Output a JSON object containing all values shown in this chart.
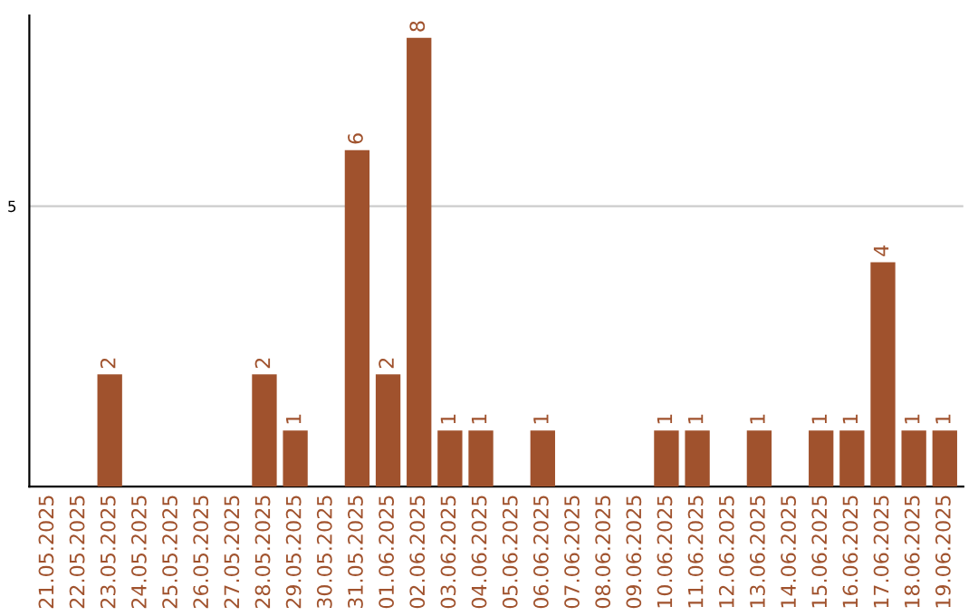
{
  "chart_data": {
    "type": "bar",
    "categories": [
      "21.05.2025",
      "22.05.2025",
      "23.05.2025",
      "24.05.2025",
      "25.05.2025",
      "26.05.2025",
      "27.05.2025",
      "28.05.2025",
      "29.05.2025",
      "30.05.2025",
      "31.05.2025",
      "01.06.2025",
      "02.06.2025",
      "03.06.2025",
      "04.06.2025",
      "05.06.2025",
      "06.06.2025",
      "07.06.2025",
      "08.06.2025",
      "09.06.2025",
      "10.06.2025",
      "11.06.2025",
      "12.06.2025",
      "13.06.2025",
      "14.06.2025",
      "15.06.2025",
      "16.06.2025",
      "17.06.2025",
      "18.06.2025",
      "19.06.2025"
    ],
    "values": [
      0,
      0,
      2,
      0,
      0,
      0,
      0,
      2,
      1,
      0,
      6,
      2,
      8,
      1,
      1,
      0,
      1,
      0,
      0,
      0,
      1,
      1,
      0,
      1,
      0,
      1,
      1,
      4,
      1,
      1
    ],
    "value_labels": [
      null,
      null,
      "2",
      null,
      null,
      null,
      null,
      "2",
      "1",
      null,
      "6",
      "2",
      "8",
      "1",
      "1",
      null,
      "1",
      null,
      null,
      null,
      "1",
      "1",
      null,
      "1",
      null,
      "1",
      "1",
      "4",
      "1",
      "1"
    ],
    "color": "#a0522d",
    "ylim": [
      0,
      8.4
    ],
    "yticks": [
      5
    ],
    "grid": "y"
  }
}
